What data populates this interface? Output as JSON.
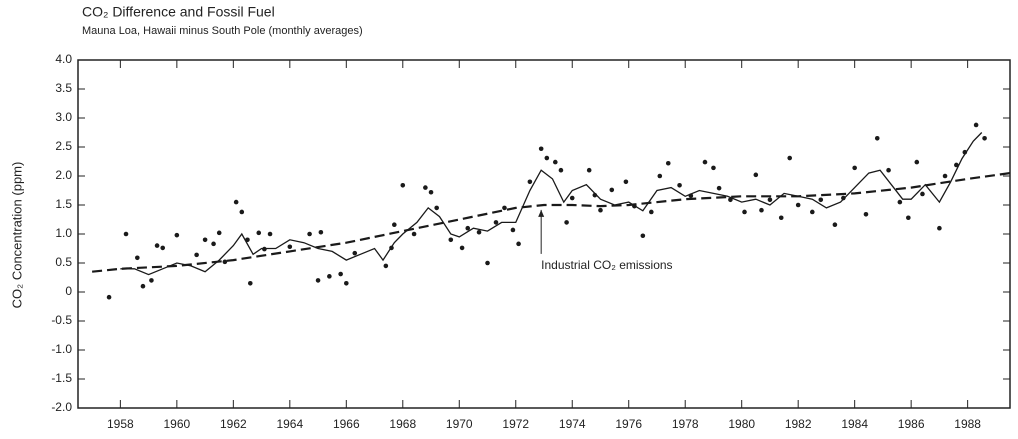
{
  "chart_data": {
    "type": "scatter",
    "title": "CO₂ Difference and Fossil Fuel",
    "subtitle": "Mauna Loa, Hawaii minus South Pole (monthly averages)",
    "y_label": "CO₂ Concentration (ppm)",
    "annotation": {
      "text": "Industrial CO₂ emissions",
      "x": 1972.9,
      "y": 1.45
    },
    "xlim": [
      1956.5,
      1989.5
    ],
    "ylim": [
      -2,
      4
    ],
    "xticks": [
      1958,
      1960,
      1962,
      1964,
      1966,
      1968,
      1970,
      1972,
      1974,
      1976,
      1978,
      1980,
      1982,
      1984,
      1986,
      1988
    ],
    "yticks": [
      {
        "value": 4,
        "label": "4.0"
      },
      3.5,
      {
        "value": 3,
        "label": "3.0"
      },
      2.5,
      {
        "value": 2,
        "label": "2.0"
      },
      1.5,
      {
        "value": 1,
        "label": "1.0"
      },
      0.5,
      0,
      -0.5,
      {
        "value": -1,
        "label": "-1.0"
      },
      -1.5,
      {
        "value": -2,
        "label": "-2.0"
      }
    ],
    "color": "#1a1a1a",
    "series": [
      {
        "style": "points",
        "x": [
          1957.6,
          1958.2,
          1958.6,
          1958.8,
          1959.1,
          1959.3,
          1959.5,
          1960.0,
          1960.7,
          1961.0,
          1961.3,
          1961.5,
          1961.7,
          1962.1,
          1962.3,
          1962.5,
          1962.6,
          1962.9,
          1963.1,
          1963.3,
          1964.0,
          1964.7,
          1965.0,
          1965.1,
          1965.4,
          1965.8,
          1966.0,
          1966.3,
          1967.4,
          1967.6,
          1967.7,
          1968.0,
          1968.4,
          1968.8,
          1969.0,
          1969.2,
          1969.7,
          1970.1,
          1970.3,
          1970.7,
          1971.0,
          1971.3,
          1971.6,
          1971.9,
          1972.1,
          1972.5,
          1972.9,
          1973.1,
          1973.4,
          1973.6,
          1973.8,
          1974.0,
          1974.6,
          1974.8,
          1975.0,
          1975.4,
          1975.9,
          1976.2,
          1976.5,
          1976.8,
          1977.1,
          1977.4,
          1977.8,
          1978.2,
          1978.7,
          1979.0,
          1979.2,
          1979.6,
          1980.1,
          1980.5,
          1980.7,
          1981.0,
          1981.4,
          1981.7,
          1982.0,
          1982.5,
          1982.8,
          1983.3,
          1983.6,
          1984.0,
          1984.4,
          1984.8,
          1985.2,
          1985.6,
          1985.9,
          1986.2,
          1986.4,
          1987.0,
          1987.2,
          1987.6,
          1987.9,
          1988.3,
          1988.6
        ],
        "values": [
          -0.09,
          1.0,
          0.59,
          0.1,
          0.2,
          0.8,
          0.76,
          0.98,
          0.64,
          0.9,
          0.83,
          1.02,
          0.52,
          1.55,
          1.38,
          0.9,
          0.15,
          1.02,
          0.74,
          1.0,
          0.78,
          1.0,
          0.2,
          1.03,
          0.27,
          0.31,
          0.15,
          0.67,
          0.45,
          0.76,
          1.16,
          1.84,
          1.0,
          1.8,
          1.72,
          1.45,
          0.9,
          0.76,
          1.1,
          1.03,
          0.5,
          1.2,
          1.45,
          1.07,
          0.83,
          1.9,
          2.47,
          2.31,
          2.24,
          2.1,
          1.2,
          1.62,
          2.1,
          1.67,
          1.41,
          1.76,
          1.9,
          1.48,
          0.97,
          1.38,
          2.0,
          2.22,
          1.84,
          1.66,
          2.24,
          2.14,
          1.79,
          1.59,
          1.38,
          2.02,
          1.41,
          1.59,
          1.28,
          2.31,
          1.5,
          1.38,
          1.59,
          1.16,
          1.62,
          2.14,
          1.34,
          2.65,
          2.1,
          1.55,
          1.28,
          2.24,
          1.69,
          1.1,
          2.0,
          2.19,
          2.41,
          2.88,
          2.65
        ]
      },
      {
        "style": "solid",
        "x": [
          1958,
          1958.5,
          1959,
          1959.5,
          1960,
          1960.5,
          1961,
          1961.5,
          1962,
          1962.3,
          1962.7,
          1963,
          1963.5,
          1964,
          1964.5,
          1965,
          1965.5,
          1966,
          1966.5,
          1967,
          1967.3,
          1967.7,
          1968,
          1968.5,
          1968.9,
          1969.3,
          1969.7,
          1970,
          1970.5,
          1971,
          1971.5,
          1972,
          1972.5,
          1972.9,
          1973.3,
          1973.7,
          1974,
          1974.5,
          1975,
          1975.5,
          1976,
          1976.5,
          1977,
          1977.5,
          1978,
          1978.5,
          1979,
          1979.5,
          1980,
          1980.5,
          1981,
          1981.5,
          1982,
          1982.5,
          1983,
          1983.5,
          1984,
          1984.5,
          1984.9,
          1985.3,
          1985.7,
          1986,
          1986.5,
          1987,
          1987.4,
          1987.8,
          1988.2,
          1988.5
        ],
        "values": [
          0.4,
          0.4,
          0.3,
          0.4,
          0.5,
          0.45,
          0.35,
          0.55,
          0.8,
          1.0,
          0.65,
          0.75,
          0.75,
          0.9,
          0.85,
          0.75,
          0.7,
          0.55,
          0.65,
          0.75,
          0.55,
          0.85,
          1.0,
          1.2,
          1.45,
          1.3,
          1.0,
          0.95,
          1.1,
          1.05,
          1.2,
          1.2,
          1.75,
          2.1,
          1.95,
          1.55,
          1.75,
          1.85,
          1.6,
          1.5,
          1.55,
          1.4,
          1.75,
          1.8,
          1.65,
          1.75,
          1.7,
          1.65,
          1.55,
          1.6,
          1.5,
          1.7,
          1.65,
          1.6,
          1.45,
          1.55,
          1.8,
          2.05,
          2.1,
          1.85,
          1.6,
          1.6,
          1.85,
          1.55,
          1.9,
          2.3,
          2.6,
          2.75
        ]
      },
      {
        "style": "dashed",
        "x": [
          1957,
          1958,
          1960,
          1962,
          1964,
          1966,
          1968,
          1970,
          1972,
          1973,
          1974,
          1975,
          1976,
          1978,
          1980,
          1982,
          1984,
          1986,
          1988,
          1989.5
        ],
        "values": [
          0.35,
          0.4,
          0.45,
          0.55,
          0.7,
          0.85,
          1.05,
          1.25,
          1.45,
          1.5,
          1.5,
          1.48,
          1.5,
          1.6,
          1.65,
          1.65,
          1.7,
          1.8,
          1.95,
          2.05
        ]
      }
    ]
  }
}
